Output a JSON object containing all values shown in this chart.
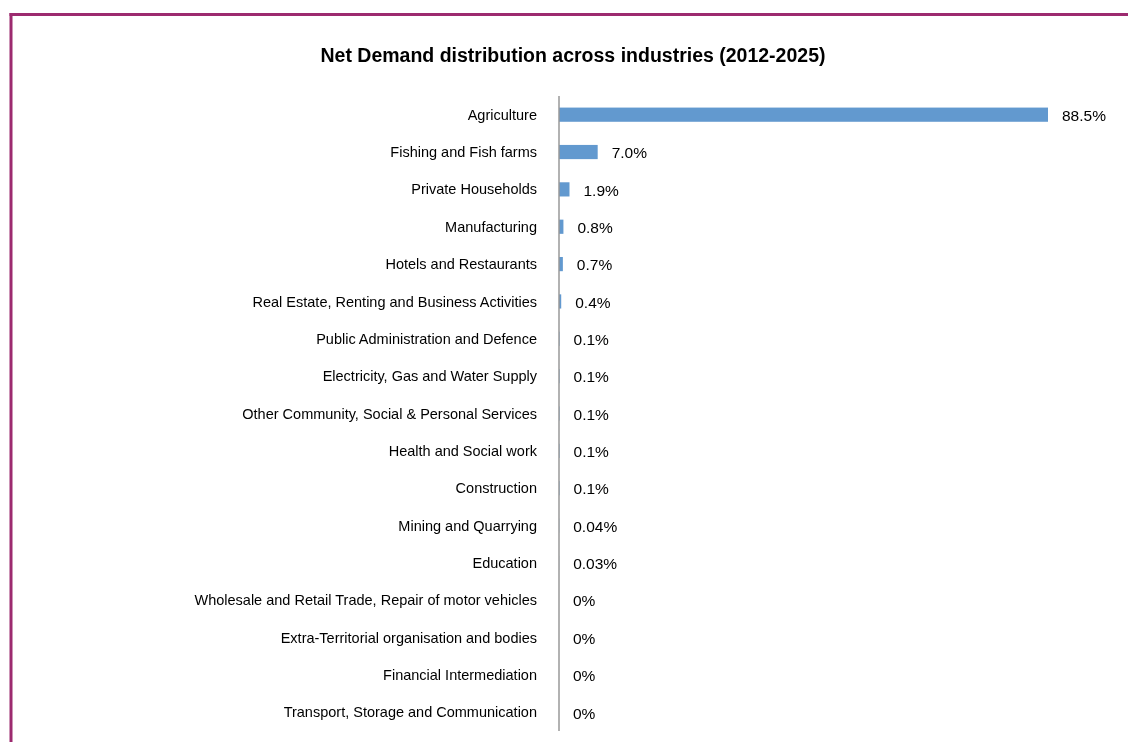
{
  "chart_data": {
    "type": "bar",
    "orientation": "horizontal",
    "title": "Net Demand distribution across industries (2012-2025)",
    "categories": [
      "Agriculture",
      "Fishing and Fish farms",
      "Private Households",
      "Manufacturing",
      "Hotels and Restaurants",
      "Real Estate, Renting and Business Activities",
      "Public Administration and Defence",
      "Electricity, Gas and Water Supply",
      "Other Community, Social & Personal Services",
      "Health and Social work",
      "Construction",
      "Mining and Quarrying",
      "Education",
      "Wholesale and Retail Trade, Repair of motor vehicles",
      "Extra-Territorial organisation and bodies",
      "Financial Intermediation",
      "Transport, Storage and Communication"
    ],
    "values": [
      88.5,
      7.0,
      1.9,
      0.8,
      0.7,
      0.4,
      0.1,
      0.1,
      0.1,
      0.1,
      0.1,
      0.04,
      0.03,
      0,
      0,
      0,
      0
    ],
    "value_labels": [
      "88.5%",
      "7.0%",
      "1.9%",
      "0.8%",
      "0.7%",
      "0.4%",
      "0.1%",
      "0.1%",
      "0.1%",
      "0.1%",
      "0.1%",
      "0.04%",
      "0.03%",
      "0%",
      "0%",
      "0%",
      "0%"
    ],
    "color": "#6299cf"
  }
}
